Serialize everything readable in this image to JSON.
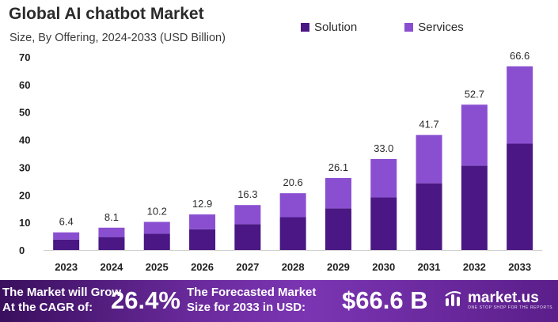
{
  "colors": {
    "solution": "#4a1784",
    "services": "#8a4fd1"
  },
  "chart_data": {
    "type": "bar",
    "stacked": true,
    "title": "Global AI chatbot Market",
    "subtitle": "Size, By Offering, 2024-2033 (USD Billion)",
    "categories": [
      "2023",
      "2024",
      "2025",
      "2026",
      "2027",
      "2028",
      "2029",
      "2030",
      "2031",
      "2032",
      "2033"
    ],
    "series": [
      {
        "name": "Solution",
        "values": [
          3.8,
          4.7,
          5.9,
          7.5,
          9.4,
          11.9,
          15.1,
          19.1,
          24.2,
          30.6,
          38.6
        ]
      },
      {
        "name": "Services",
        "values": [
          2.6,
          3.4,
          4.3,
          5.4,
          6.9,
          8.7,
          11.0,
          13.9,
          17.5,
          22.1,
          28.0
        ]
      }
    ],
    "totals": [
      "6.4",
      "8.1",
      "10.2",
      "12.9",
      "16.3",
      "20.6",
      "26.1",
      "33.0",
      "41.7",
      "52.7",
      "66.6"
    ],
    "yticks": [
      0,
      10,
      20,
      30,
      40,
      50,
      60,
      70
    ],
    "ylim": [
      0,
      70
    ],
    "grid": false,
    "legend": "top-right"
  },
  "banner": {
    "text1_line1": "The Market will Grow",
    "text1_line2": "At the CAGR of:",
    "cagr": "26.4%",
    "text2_line1": "The Forecasted Market",
    "text2_line2": "Size for 2033 in USD:",
    "size": "$66.6 B",
    "logo_name": "market.us",
    "logo_tagline": "ONE STOP SHOP FOR THE REPORTS"
  }
}
